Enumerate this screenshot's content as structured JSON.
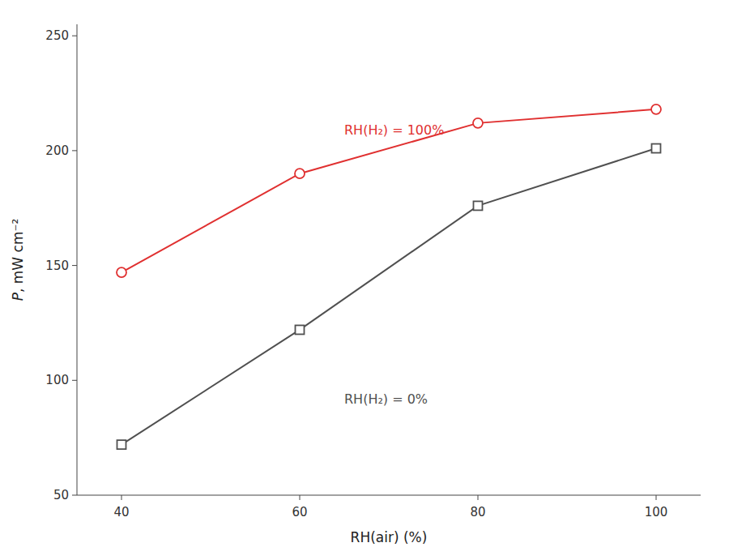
{
  "chart_data": {
    "type": "line",
    "x": [
      40,
      60,
      80,
      100
    ],
    "series": [
      {
        "color": "#e03030",
        "marker": "circle",
        "values": [
          147,
          190,
          212,
          218
        ]
      },
      {
        "color": "#505050",
        "marker": "square",
        "values": [
          72,
          122,
          176,
          201
        ]
      }
    ],
    "xlabel": "RH(air) (%)",
    "ylabel": "P, mW cm⁻²",
    "xlim": [
      35,
      105
    ],
    "ylim": [
      50,
      255
    ],
    "xticks": [
      40,
      60,
      80,
      100
    ],
    "yticks": [
      50,
      100,
      150,
      200,
      250
    ],
    "grid": false,
    "annotations": [
      {
        "text": "RH(H₂) = 100%",
        "x": 65,
        "y": 207,
        "color": "#e03030"
      },
      {
        "text": "RH(H₂) = 0%",
        "x": 65,
        "y": 90,
        "color": "#505050"
      }
    ]
  }
}
